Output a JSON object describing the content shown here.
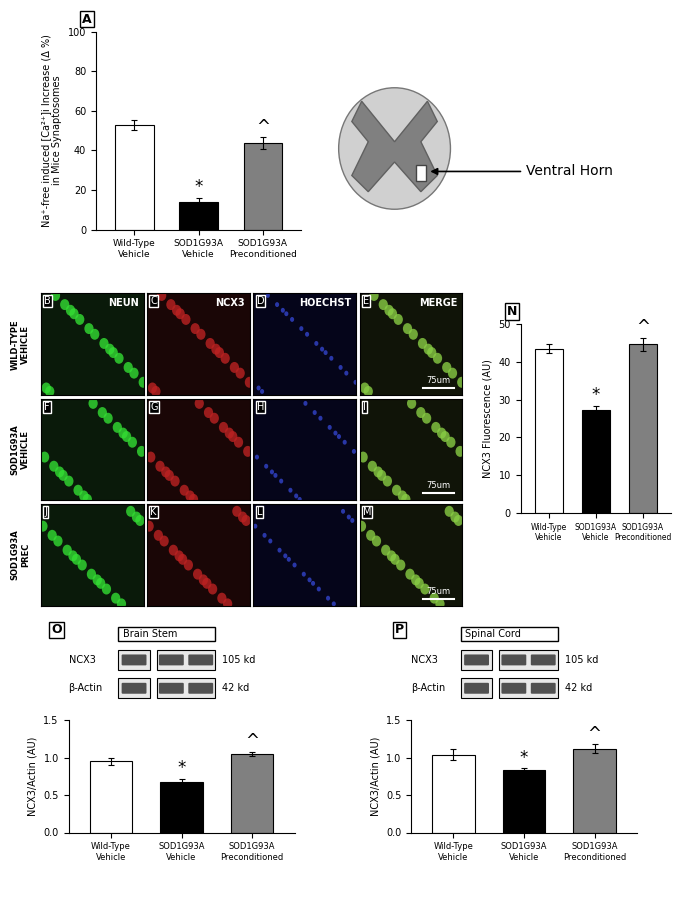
{
  "chart_data": [
    {
      "type": "bar",
      "panel": "A",
      "categories": [
        "Wild-Type\nVehicle",
        "SOD1G93A\nVehicle",
        "SOD1G93A\nPreconditioned"
      ],
      "values": [
        53,
        14,
        43.5
      ],
      "errors": [
        2.5,
        2,
        3
      ],
      "colors": [
        "#ffffff",
        "#000000",
        "#808080"
      ],
      "significance": [
        null,
        "*",
        "^"
      ],
      "y_label": "Na⁺-free induced [Ca²⁺]i Increase (Δ %)\nin Mice Synaptosomes",
      "ylim": [
        0,
        100
      ],
      "yticks": [
        0,
        20,
        40,
        60,
        80,
        100
      ]
    },
    {
      "type": "bar",
      "panel": "N",
      "categories": [
        "Wild-Type\nVehicle",
        "SOD1G93A\nVehicle",
        "SOD1G93A\nPreconditioned"
      ],
      "values": [
        43.5,
        27.2,
        44.6
      ],
      "errors": [
        1.2,
        1.2,
        1.8
      ],
      "colors": [
        "#ffffff",
        "#000000",
        "#808080"
      ],
      "significance": [
        null,
        "*",
        "^"
      ],
      "y_label": "NCX3 Fluorescence (AU)",
      "ylim": [
        0,
        50
      ],
      "yticks": [
        0,
        10,
        20,
        30,
        40,
        50
      ]
    },
    {
      "type": "bar",
      "categories": [
        "Wild-Type\nVehicle",
        "SOD1G93A\nVehicle",
        "SOD1G93A\nPreconditioned"
      ],
      "values": [
        0.95,
        0.67,
        1.05
      ],
      "errors": [
        0.05,
        0.05,
        0.03
      ],
      "colors": [
        "#ffffff",
        "#000000",
        "#808080"
      ],
      "significance": [
        null,
        "*",
        "^"
      ],
      "y_label": "NCX3/Actin (AU)",
      "ylim": [
        0,
        1.5
      ],
      "yticks": [
        {
          "value": 0,
          "label": "0.0"
        },
        {
          "value": 0.5,
          "label": "0.5"
        },
        {
          "value": 1,
          "label": "1.0"
        },
        {
          "value": 1.5,
          "label": "1.5"
        }
      ]
    },
    {
      "type": "bar",
      "categories": [
        "Wild-Type\nVehicle",
        "SOD1G93A\nVehicle",
        "SOD1G93A\nPreconditioned"
      ],
      "values": [
        1.04,
        0.83,
        1.12
      ],
      "errors": [
        0.07,
        0.03,
        0.06
      ],
      "colors": [
        "#ffffff",
        "#000000",
        "#808080"
      ],
      "significance": [
        null,
        "*",
        "^"
      ],
      "y_label": "NCX3/Actin (AU)",
      "ylim": [
        0,
        1.5
      ],
      "yticks": [
        {
          "value": 0,
          "label": "0.0"
        },
        {
          "value": 0.5,
          "label": "0.5"
        },
        {
          "value": 1,
          "label": "1.0"
        },
        {
          "value": 1.5,
          "label": "1.5"
        }
      ]
    }
  ],
  "diagram": {
    "label": "Ventral Horn"
  },
  "micrographs": {
    "panel_letters": [
      [
        "B",
        "C",
        "D",
        "E"
      ],
      [
        "F",
        "G",
        "H",
        "I"
      ],
      [
        "J",
        "K",
        "L",
        "M"
      ]
    ],
    "channels": [
      "NEUN",
      "NCX3",
      "HOECHST",
      "MERGE"
    ],
    "rows": [
      "WILD-TYPE\nVEHICLE",
      "SOD1G93A\nVEHICLE",
      "SOD1G93A\nPREC"
    ],
    "scale_bar": "75um"
  },
  "blots": [
    {
      "panel": "O",
      "title": "Brain Stem",
      "rows": [
        {
          "name": "NCX3",
          "size": "105 kd"
        },
        {
          "name": "β-Actin",
          "size": "42 kd"
        }
      ]
    },
    {
      "panel": "P",
      "title": "Spinal Cord",
      "rows": [
        {
          "name": "NCX3",
          "size": "105 kd"
        },
        {
          "name": "β-Actin",
          "size": "42 kd"
        }
      ]
    }
  ]
}
